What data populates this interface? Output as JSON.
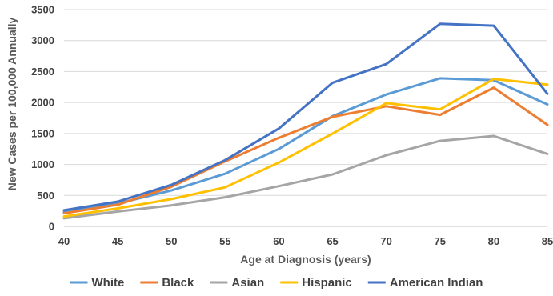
{
  "chart_data": {
    "type": "line",
    "title": "",
    "xlabel": "Age at Diagnosis (years)",
    "ylabel": "New Cases per 100,000 Annually",
    "x": [
      40,
      45,
      50,
      55,
      60,
      65,
      70,
      75,
      80,
      85
    ],
    "x_ticks": [
      "40",
      "45",
      "50",
      "55",
      "60",
      "65",
      "70",
      "75",
      "80",
      "85"
    ],
    "xlim": [
      40,
      85
    ],
    "ylim": [
      0,
      3500
    ],
    "y_ticks": [
      "0",
      "500",
      "1000",
      "1500",
      "2000",
      "2500",
      "3000",
      "3500"
    ],
    "grid": "horizontal",
    "legend_position": "bottom",
    "series": [
      {
        "name": "White",
        "color": "#5B9BD5",
        "values": [
          230,
          370,
          580,
          850,
          1250,
          1780,
          2130,
          2390,
          2360,
          1970
        ]
      },
      {
        "name": "Black",
        "color": "#ED7D31",
        "values": [
          210,
          350,
          640,
          1050,
          1430,
          1770,
          1940,
          1800,
          2240,
          1640
        ]
      },
      {
        "name": "Asian",
        "color": "#A5A5A5",
        "values": [
          130,
          240,
          340,
          470,
          650,
          840,
          1150,
          1380,
          1460,
          1170
        ]
      },
      {
        "name": "Hispanic",
        "color": "#FFC000",
        "values": [
          160,
          290,
          440,
          630,
          1030,
          1500,
          1990,
          1890,
          2380,
          2290
        ]
      },
      {
        "name": "American Indian",
        "color": "#4472C4",
        "values": [
          260,
          400,
          670,
          1070,
          1580,
          2320,
          2620,
          3270,
          3240,
          2140
        ]
      }
    ]
  }
}
